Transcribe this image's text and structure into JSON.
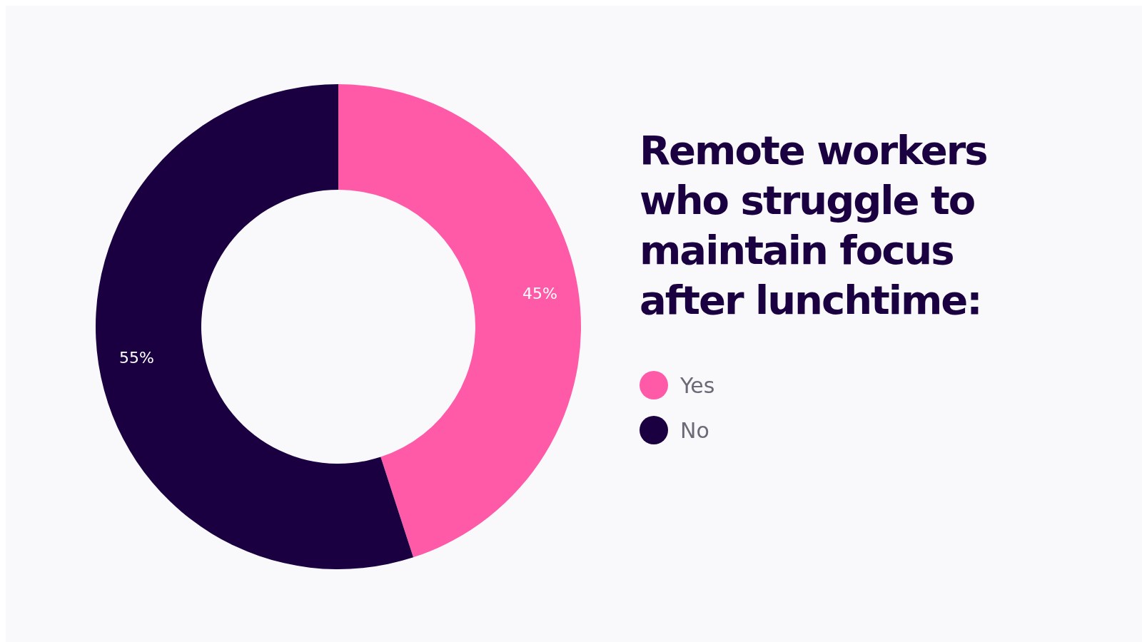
{
  "chart_data": {
    "type": "donut",
    "title": "Remote workers who struggle to maintain focus after lunchtime:",
    "categories": [
      "Yes",
      "No"
    ],
    "values": [
      45,
      55
    ],
    "colors": [
      "#ff5aa8",
      "#1a0040"
    ],
    "value_labels": [
      "45%",
      "55%"
    ],
    "legend": "right"
  }
}
